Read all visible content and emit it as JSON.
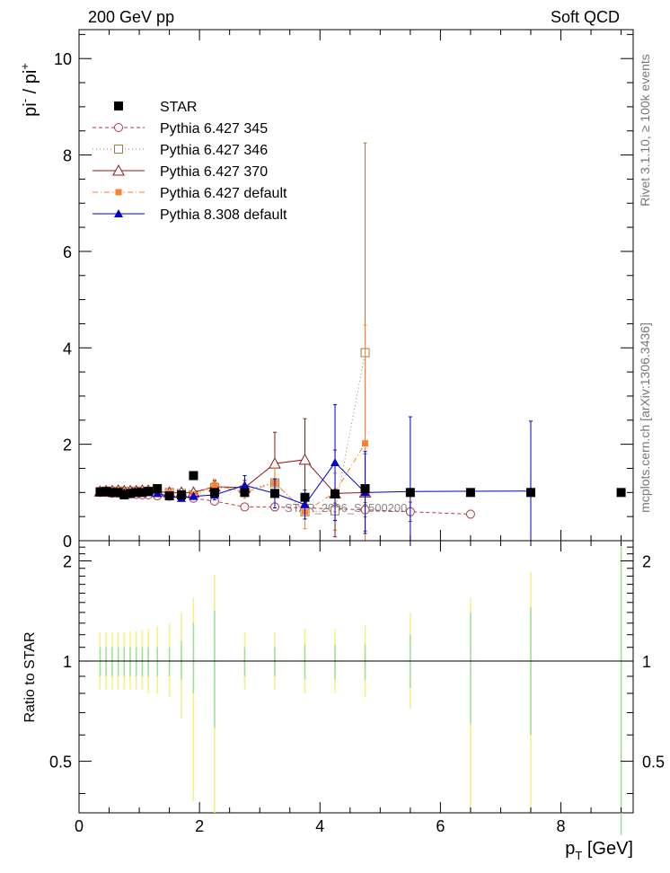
{
  "header": {
    "left_label": "200 GeV pp",
    "right_label": "Soft QCD"
  },
  "side_labels": {
    "rivet": "Rivet 3.1.10, ≥ 100k events",
    "mcplots": "mcplots.cern.ch [arXiv:1306.3436]"
  },
  "watermark": "STAR_2006_S6500200",
  "chart_data": [
    {
      "type": "scatter",
      "panel": "main",
      "ylabel_main": "pi",
      "ylabel_sup1": "-",
      "ylabel_mid": " / pi",
      "ylabel_sup2": "+",
      "xlim": [
        0,
        9.2
      ],
      "ylim": [
        0,
        10.6
      ],
      "x_ticks": [
        "0",
        "2",
        "4",
        "6",
        "8"
      ],
      "y_ticks": [
        "0",
        "2",
        "4",
        "6",
        "8",
        "10"
      ],
      "legend_position": "top-left",
      "series": [
        {
          "name": "STAR",
          "color": "#000000",
          "marker": "filled-square",
          "line": "none",
          "x": [
            0.35,
            0.45,
            0.55,
            0.65,
            0.75,
            0.85,
            0.95,
            1.05,
            1.15,
            1.3,
            1.5,
            1.7,
            1.9,
            2.25,
            2.75,
            3.25,
            3.75,
            4.25,
            4.75,
            5.5,
            6.5,
            7.5,
            9.0
          ],
          "y": [
            1.01,
            1.02,
            1.0,
            1.0,
            0.95,
            0.98,
            1.0,
            1.0,
            1.02,
            1.08,
            0.93,
            0.95,
            1.35,
            1.0,
            1.0,
            0.98,
            0.9,
            0.97,
            1.08,
            1.0,
            1.0,
            1.0,
            1.0
          ]
        },
        {
          "name": "Pythia 6.427 345",
          "color": "#b03a48",
          "marker": "open-circle",
          "line": "dashed",
          "x": [
            0.35,
            0.45,
            0.55,
            0.65,
            0.75,
            0.85,
            0.95,
            1.05,
            1.15,
            1.3,
            1.5,
            1.7,
            1.9,
            2.25,
            2.75,
            3.25,
            3.75,
            4.25,
            4.75,
            5.5,
            6.5
          ],
          "y": [
            1.0,
            1.0,
            0.98,
            0.98,
            0.97,
            0.97,
            0.96,
            0.95,
            0.95,
            0.93,
            0.92,
            0.9,
            0.88,
            0.82,
            0.7,
            0.7,
            0.68,
            0.66,
            0.64,
            0.6,
            0.55
          ],
          "yerr": [
            0.02,
            0.02,
            0.02,
            0.02,
            0.02,
            0.02,
            0.02,
            0.02,
            0.02,
            0.03,
            0.03,
            0.03,
            0.04,
            0.05,
            0.06,
            0.08,
            0.1,
            0.12,
            0.15,
            0.2,
            0.08
          ]
        },
        {
          "name": "Pythia 6.427 346",
          "color": "#a07c3a",
          "marker": "open-square",
          "line": "dotted",
          "x": [
            0.35,
            0.45,
            0.55,
            0.65,
            0.75,
            0.85,
            0.95,
            1.05,
            1.15,
            1.3,
            1.5,
            1.7,
            1.9,
            2.25,
            2.75,
            3.25,
            3.75,
            4.25,
            4.75
          ],
          "y": [
            1.02,
            1.03,
            1.02,
            1.03,
            1.02,
            1.02,
            1.03,
            1.02,
            1.03,
            1.0,
            1.0,
            0.98,
            0.95,
            1.1,
            1.05,
            1.2,
            0.6,
            0.62,
            3.9
          ],
          "yerr": [
            0.02,
            0.02,
            0.02,
            0.02,
            0.02,
            0.02,
            0.02,
            0.02,
            0.02,
            0.03,
            0.03,
            0.04,
            0.05,
            0.15,
            0.1,
            0.3,
            0.35,
            0.4,
            4.35
          ]
        },
        {
          "name": "Pythia 6.427 370",
          "color": "#8b1a1a",
          "marker": "open-triangle",
          "line": "solid",
          "x": [
            0.35,
            0.45,
            0.55,
            0.65,
            0.75,
            0.85,
            0.95,
            1.05,
            1.15,
            1.3,
            1.5,
            1.7,
            1.9,
            2.25,
            2.75,
            3.25,
            3.75,
            4.25,
            4.75
          ],
          "y": [
            1.02,
            1.03,
            1.03,
            1.04,
            1.03,
            1.03,
            1.03,
            1.04,
            1.04,
            1.02,
            1.0,
            1.0,
            1.0,
            1.12,
            1.1,
            1.6,
            1.68,
            0.98,
            1.0
          ],
          "yerr": [
            0.02,
            0.02,
            0.02,
            0.02,
            0.02,
            0.02,
            0.02,
            0.02,
            0.02,
            0.03,
            0.03,
            0.04,
            0.05,
            0.12,
            0.15,
            0.65,
            0.85,
            0.9,
            0.8
          ]
        },
        {
          "name": "Pythia 6.427 default",
          "color": "#ff8030",
          "marker": "filled-square-small",
          "line": "dashdot",
          "x": [
            0.35,
            0.45,
            0.55,
            0.65,
            0.75,
            0.85,
            0.95,
            1.05,
            1.15,
            1.3,
            1.5,
            1.7,
            1.9,
            2.25,
            2.75,
            3.25,
            3.75,
            4.25,
            4.75
          ],
          "y": [
            1.02,
            1.03,
            1.02,
            1.03,
            1.02,
            1.02,
            1.02,
            1.02,
            1.02,
            1.0,
            1.0,
            0.98,
            0.96,
            1.15,
            1.0,
            1.2,
            0.6,
            1.0,
            2.02
          ],
          "yerr": [
            0.02,
            0.02,
            0.02,
            0.02,
            0.02,
            0.02,
            0.02,
            0.02,
            0.02,
            0.03,
            0.03,
            0.04,
            0.05,
            0.12,
            0.12,
            0.3,
            0.35,
            0.4,
            2.45
          ]
        },
        {
          "name": "Pythia 8.308 default",
          "color": "#0000cc",
          "marker": "filled-triangle",
          "line": "solid",
          "x": [
            0.35,
            0.45,
            0.55,
            0.65,
            0.75,
            0.85,
            0.95,
            1.05,
            1.15,
            1.3,
            1.5,
            1.7,
            1.9,
            2.25,
            2.75,
            3.25,
            3.75,
            4.25,
            4.75,
            5.5,
            7.5
          ],
          "y": [
            1.0,
            1.0,
            0.99,
            1.0,
            1.0,
            1.0,
            1.0,
            1.0,
            1.0,
            0.98,
            0.92,
            0.88,
            0.92,
            0.95,
            1.15,
            0.98,
            0.75,
            1.62,
            1.0,
            1.02,
            1.03
          ],
          "yerr": [
            0.02,
            0.02,
            0.02,
            0.02,
            0.02,
            0.02,
            0.02,
            0.02,
            0.02,
            0.03,
            0.03,
            0.04,
            0.05,
            0.1,
            0.2,
            0.3,
            0.3,
            1.2,
            0.85,
            1.55,
            1.45
          ]
        }
      ]
    },
    {
      "type": "scatter",
      "panel": "ratio",
      "ylabel": "Ratio to STAR",
      "xlabel_main": "p",
      "xlabel_sub": "T",
      "xlabel_unit": " [GeV]",
      "xlim": [
        0,
        9.2
      ],
      "ylim": [
        0.35,
        2.3
      ],
      "y_ticks": [
        "0.5",
        "1",
        "2"
      ],
      "reference_value": 1.0,
      "band_colors": {
        "inner": "#99e0a0",
        "outer": "#f5f07a"
      },
      "bands": {
        "x": [
          0.35,
          0.45,
          0.55,
          0.65,
          0.75,
          0.85,
          0.95,
          1.05,
          1.15,
          1.3,
          1.5,
          1.7,
          1.9,
          2.25,
          2.75,
          3.25,
          3.75,
          4.25,
          4.75,
          5.5,
          6.5,
          7.5,
          9.0
        ],
        "inner_low": [
          0.9,
          0.9,
          0.9,
          0.9,
          0.9,
          0.9,
          0.9,
          0.9,
          0.9,
          0.9,
          0.9,
          0.88,
          0.8,
          0.63,
          0.9,
          0.9,
          0.88,
          0.88,
          0.88,
          0.83,
          0.65,
          0.6,
          0.3
        ],
        "inner_high": [
          1.1,
          1.1,
          1.1,
          1.1,
          1.1,
          1.1,
          1.1,
          1.1,
          1.1,
          1.1,
          1.1,
          1.15,
          1.3,
          1.42,
          1.1,
          1.1,
          1.12,
          1.12,
          1.12,
          1.2,
          1.4,
          1.45,
          2.2
        ],
        "outer_low": [
          0.82,
          0.82,
          0.82,
          0.82,
          0.82,
          0.82,
          0.82,
          0.82,
          0.8,
          0.8,
          0.78,
          0.67,
          0.38,
          0.35,
          0.82,
          0.82,
          0.8,
          0.8,
          0.78,
          0.72,
          0.35,
          0.35,
          0.35
        ],
        "outer_high": [
          1.22,
          1.22,
          1.22,
          1.22,
          1.22,
          1.23,
          1.23,
          1.24,
          1.25,
          1.27,
          1.3,
          1.4,
          1.55,
          1.82,
          1.22,
          1.22,
          1.25,
          1.25,
          1.28,
          1.4,
          1.55,
          1.85,
          2.3
        ]
      }
    }
  ]
}
